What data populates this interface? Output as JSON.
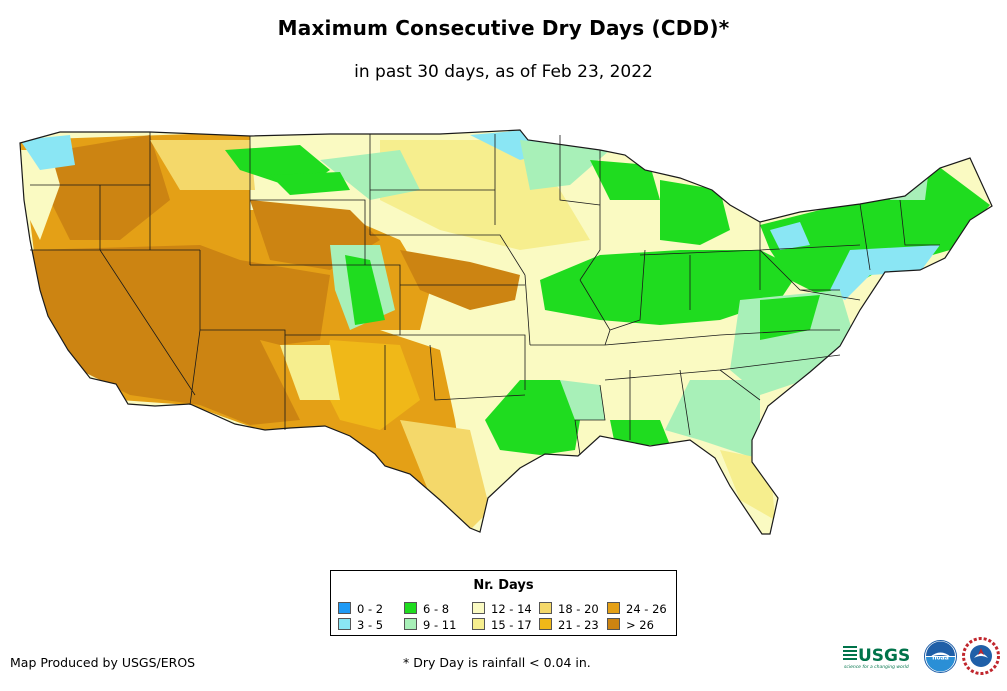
{
  "title": "Maximum Consecutive Dry Days (CDD)*",
  "subtitle": "in past 30 days, as of Feb 23, 2022",
  "legend": {
    "title": "Nr. Days",
    "items": [
      {
        "label": "0 - 2",
        "color": "#1e9af5"
      },
      {
        "label": "3 - 5",
        "color": "#8ae6f4"
      },
      {
        "label": "6 - 8",
        "color": "#1fdc1f"
      },
      {
        "label": "9 - 11",
        "color": "#a8f0b8"
      },
      {
        "label": "12 - 14",
        "color": "#fafac2"
      },
      {
        "label": "15 - 17",
        "color": "#f6ee8e"
      },
      {
        "label": "18 - 20",
        "color": "#f4d86a"
      },
      {
        "label": "21 - 23",
        "color": "#f0b818"
      },
      {
        "label": "24 - 26",
        "color": "#e4a016"
      },
      {
        "label": "> 26",
        "color": "#cc8412"
      }
    ]
  },
  "credit": "Map Produced by USGS/EROS",
  "footnote": "* Dry Day is rainfall < 0.04 in.",
  "logos": {
    "usgs": "USGS",
    "usgs_tagline": "science for a changing world",
    "noaa": "noaa"
  },
  "colors": {
    "state_border": "#1a1a1a",
    "background": "#ffffff"
  }
}
